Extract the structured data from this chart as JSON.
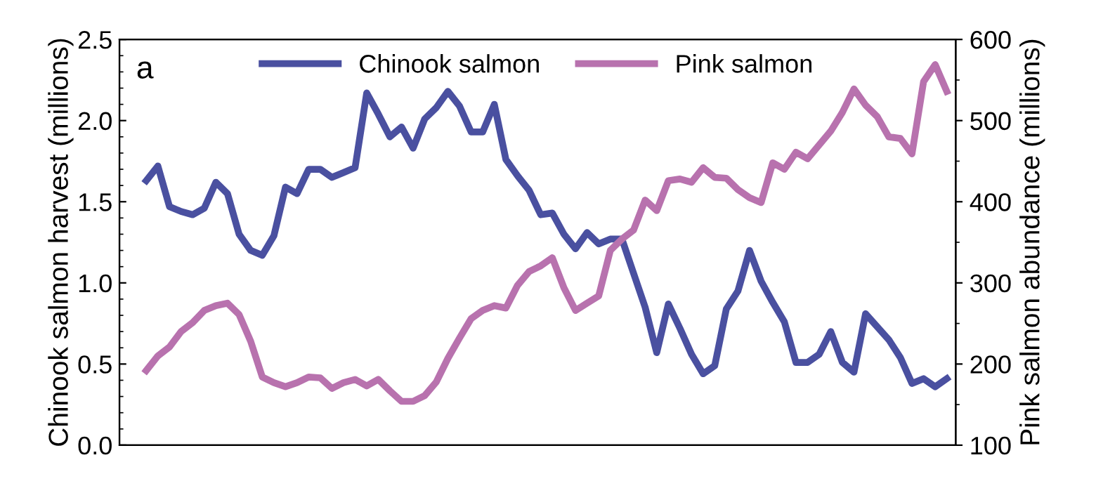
{
  "chart_data": {
    "type": "line",
    "annotations": [
      "a"
    ],
    "ylabel": "Chinook salmon harvest (millions)",
    "y2label": "Pink salmon abundance (millions)",
    "categories": [
      null,
      null,
      null,
      null,
      null,
      null,
      null,
      null,
      null,
      null,
      null,
      null,
      null,
      null,
      null,
      null,
      null,
      null,
      null,
      null,
      null,
      null,
      null,
      null,
      null,
      null,
      null,
      null,
      null,
      null,
      null,
      null,
      null,
      null,
      null,
      null,
      null,
      null,
      null,
      null,
      null,
      null,
      null,
      null,
      null,
      null,
      null,
      null,
      null,
      null,
      null,
      null,
      null,
      null,
      null,
      null,
      null,
      null,
      null,
      null,
      null,
      null,
      null,
      null,
      null,
      null,
      null,
      null,
      null,
      null
    ],
    "ylim": [
      0,
      2.5
    ],
    "yticks": [
      {
        "value": 0,
        "label": "0.0"
      },
      {
        "value": 0.5,
        "label": "0.5"
      },
      {
        "value": 1,
        "label": "1.0"
      },
      {
        "value": 1.5,
        "label": "1.5"
      },
      {
        "value": 2,
        "label": "2.0"
      },
      {
        "value": 2.5,
        "label": "2.5"
      }
    ],
    "y2lim": [
      100,
      600
    ],
    "y2ticks": [
      100,
      200,
      300,
      400,
      500,
      600
    ],
    "legend": "top",
    "grid": false,
    "marker": "none",
    "line_style": "solid",
    "series": [
      {
        "name": "Chinook salmon",
        "color": "#4a50a0",
        "values": [
          1.63,
          1.72,
          1.47,
          1.44,
          1.42,
          1.46,
          1.62,
          1.55,
          1.3,
          1.2,
          1.17,
          1.29,
          1.59,
          1.55,
          1.7,
          1.7,
          1.65,
          1.68,
          1.71,
          2.17,
          2.04,
          1.9,
          1.96,
          1.83,
          2.01,
          2.08,
          2.18,
          2.09,
          1.93,
          1.93,
          2.1,
          1.76,
          1.66,
          1.57,
          1.42,
          1.43,
          1.3,
          1.21,
          1.31,
          1.24,
          1.27,
          1.27,
          1.06,
          0.85,
          0.57,
          0.87,
          0.72,
          0.56,
          0.44,
          0.49,
          0.84,
          0.95,
          1.2,
          1.01,
          0.88,
          0.76,
          0.51,
          0.51,
          0.56,
          0.7,
          0.51,
          0.45,
          0.81,
          0.73,
          0.65,
          0.54,
          0.38,
          0.41,
          0.36,
          0.41
        ]
      },
      {
        "name": "Pink salmon",
        "color": "#b872ae",
        "axis": "y2",
        "values": [
          192,
          210,
          221,
          240,
          251,
          266,
          272,
          275,
          261,
          228,
          184,
          177,
          172,
          177,
          184,
          183,
          170,
          177,
          181,
          173,
          181,
          167,
          154,
          154,
          161,
          178,
          207,
          232,
          256,
          266,
          272,
          269,
          297,
          314,
          321,
          331,
          294,
          266,
          275,
          284,
          340,
          354,
          365,
          402,
          389,
          426,
          428,
          424,
          442,
          430,
          429,
          415,
          405,
          399,
          448,
          440,
          461,
          453,
          470,
          487,
          510,
          539,
          519,
          505,
          480,
          478,
          459,
          548,
          569,
          536
        ]
      }
    ]
  }
}
